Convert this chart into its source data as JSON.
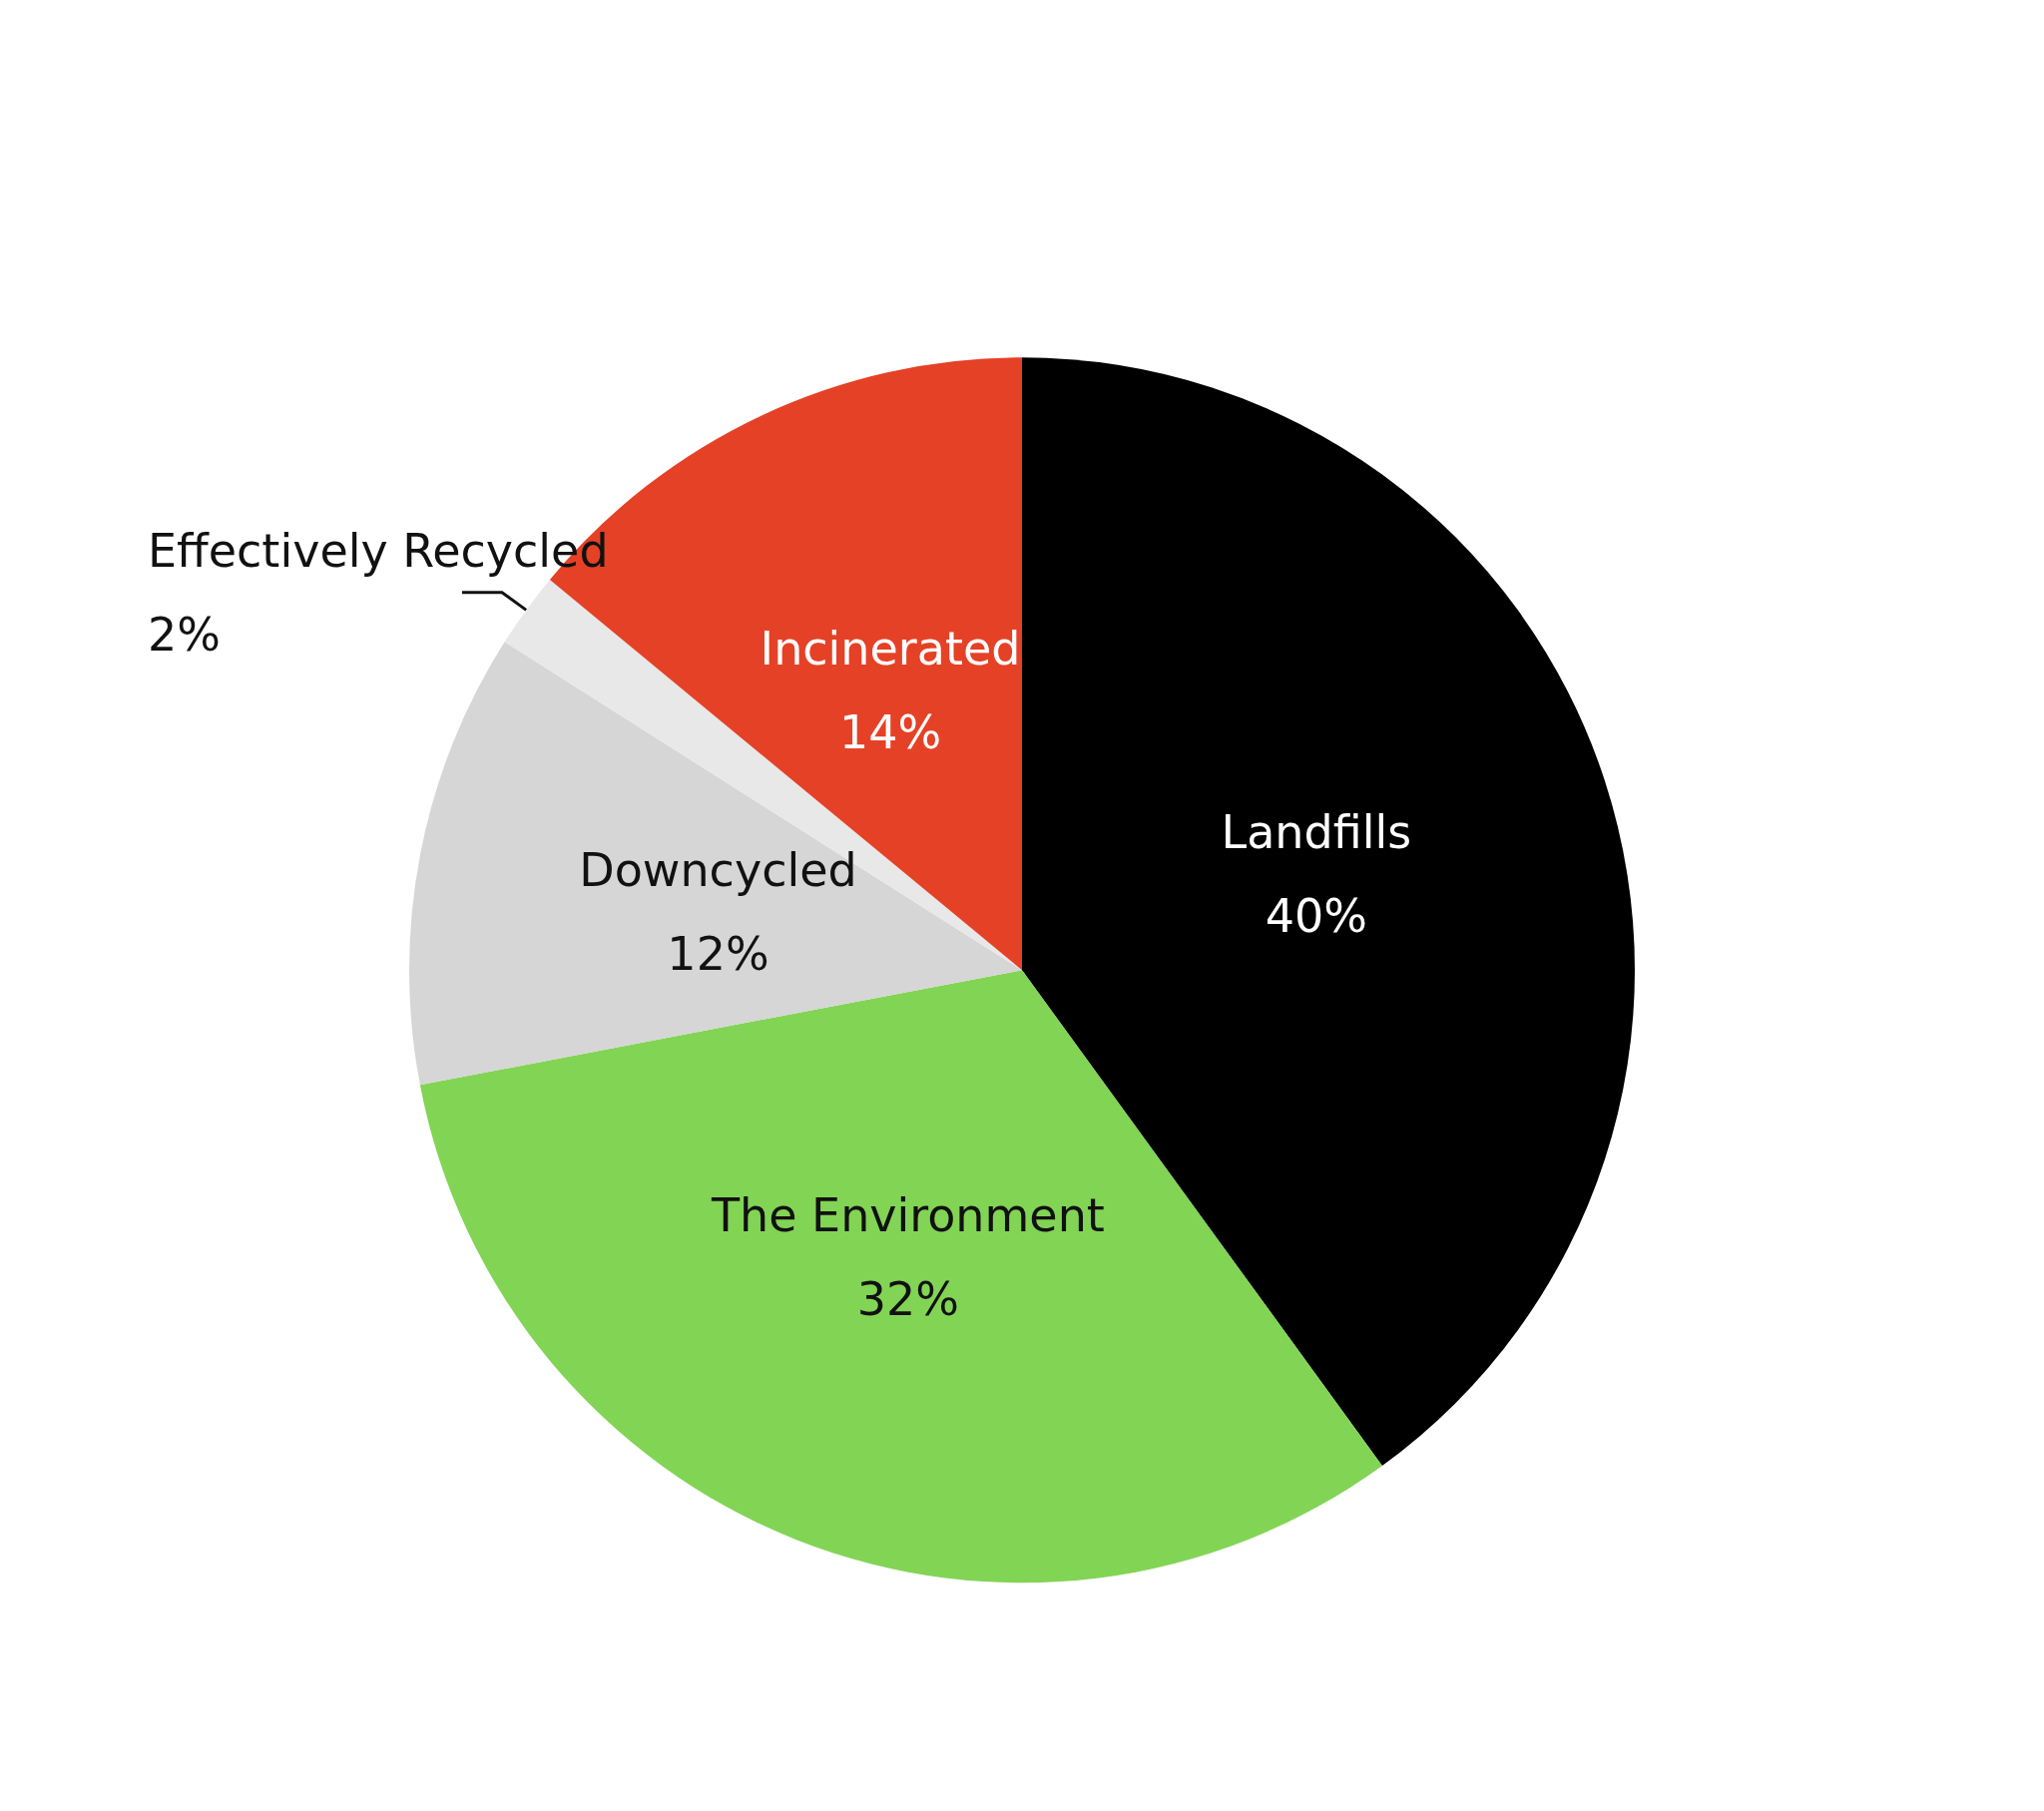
{
  "chart_data": {
    "type": "pie",
    "categories": [
      "Landfills",
      "The Environment",
      "Downcycled",
      "Effectively Recycled",
      "Incinerated"
    ],
    "values": [
      40,
      32,
      12,
      2,
      14
    ],
    "value_labels": [
      "40%",
      "32%",
      "12%",
      "2%",
      "14%"
    ],
    "colors": [
      "#000000",
      "#82d455",
      "#d6d6d6",
      "#e8e8e8",
      "#e54126"
    ]
  }
}
